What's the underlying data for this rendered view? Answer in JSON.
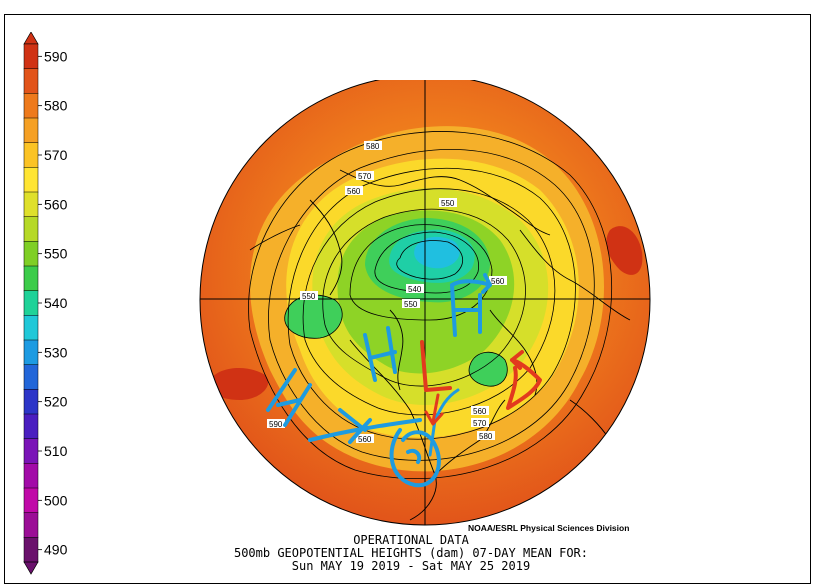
{
  "colorbar": {
    "ticks": [
      "590",
      "580",
      "570",
      "560",
      "550",
      "540",
      "530",
      "520",
      "510",
      "500",
      "490"
    ],
    "colors": [
      "#d03214",
      "#e2541a",
      "#ee7a1c",
      "#f5a024",
      "#fbc325",
      "#ffe533",
      "#dfe02b",
      "#b6d927",
      "#7fcf25",
      "#3ccc4a",
      "#1fd298",
      "#20c8d8",
      "#1d9be2",
      "#2266d9",
      "#2c35c8",
      "#4a1ec0",
      "#7a14b7",
      "#a20ba8",
      "#c009a8",
      "#9b0d96",
      "#6a116c"
    ]
  },
  "map": {
    "contour_labels": [
      {
        "text": "580"
      },
      {
        "text": "570"
      },
      {
        "text": "560"
      },
      {
        "text": "550"
      },
      {
        "text": "540"
      },
      {
        "text": "550"
      },
      {
        "text": "550"
      },
      {
        "text": "560"
      },
      {
        "text": "560"
      },
      {
        "text": "570"
      },
      {
        "text": "580"
      },
      {
        "text": "560"
      },
      {
        "text": "590"
      }
    ],
    "annotations": [
      {
        "text": "H",
        "color": "#1e9be0"
      },
      {
        "text": "H",
        "color": "#1e9be0"
      },
      {
        "text": "H",
        "color": "#1e9be0"
      },
      {
        "text": "L",
        "color": "#e23a1e"
      }
    ]
  },
  "footer": {
    "credit": "NOAA/ESRL Physical Sciences Division",
    "line1": "OPERATIONAL DATA",
    "line2": "500mb GEOPOTENTIAL HEIGHTS (dam)   07-DAY MEAN FOR:",
    "line3": "Sun MAY 19 2019 - Sat MAY 25 2019"
  }
}
